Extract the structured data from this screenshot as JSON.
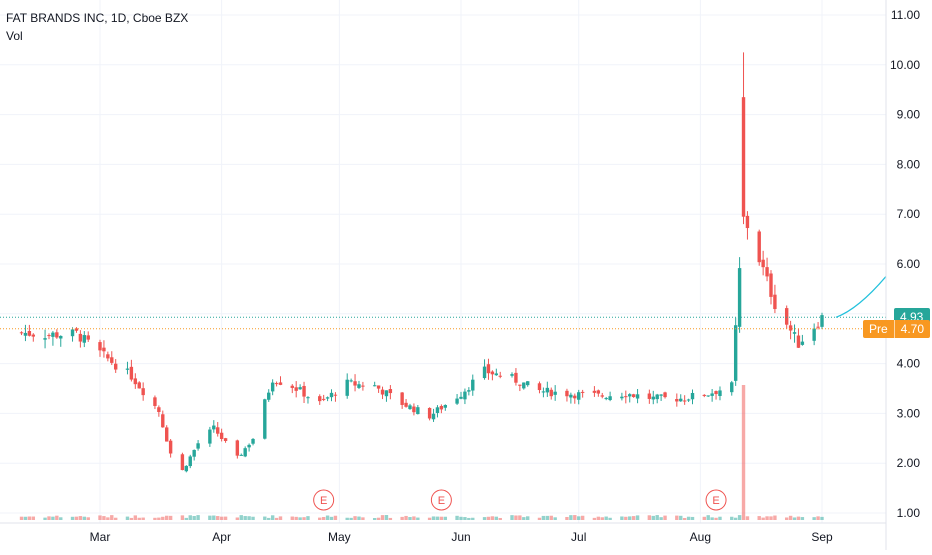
{
  "legend": {
    "title": "FAT BRANDS INC, 1D, Cboe BZX",
    "volume_label": "Vol"
  },
  "price_scale_labels": {
    "last": "4.93",
    "premarket_tag": "Pre",
    "premarket_value": "4.70"
  },
  "earnings_marker_label": "E",
  "colors": {
    "up": "#26a69a",
    "down": "#ef5350",
    "premarket": "#f89821",
    "projection": "#22c1dc",
    "grid": "#f0f3fa"
  },
  "chart_data": {
    "type": "candlestick",
    "title": "FAT BRANDS INC, 1D, Cboe BZX",
    "ylim": [
      0.8,
      11.2
    ],
    "yticks": [
      "1.00",
      "2.00",
      "3.00",
      "4.00",
      "5.00",
      "6.00",
      "7.00",
      "8.00",
      "9.00",
      "10.00",
      "11.00"
    ],
    "x_labels": [
      "Mar",
      "Apr",
      "May",
      "Jun",
      "Jul",
      "Aug",
      "Sep"
    ],
    "last_price": 4.93,
    "premarket_price": 4.7,
    "earnings_dates": [
      "2021-04-27",
      "2021-05-27",
      "2021-08-05"
    ],
    "candles": [
      {
        "date": "2021-02-09",
        "close": 4.62
      },
      {
        "date": "2021-02-16",
        "close": 4.58
      },
      {
        "date": "2021-02-23",
        "close": 4.6
      },
      {
        "date": "2021-03-02",
        "close": 4.15
      },
      {
        "date": "2021-03-09",
        "close": 3.75
      },
      {
        "date": "2021-03-16",
        "close": 3.05
      },
      {
        "date": "2021-03-19",
        "close": 2.2
      },
      {
        "date": "2021-03-22",
        "close": 1.85
      },
      {
        "date": "2021-03-26",
        "close": 2.4
      },
      {
        "date": "2021-03-30",
        "close": 2.7
      },
      {
        "date": "2021-04-05",
        "close": 2.1
      },
      {
        "date": "2021-04-09",
        "close": 2.5
      },
      {
        "date": "2021-04-14",
        "close": 3.7
      },
      {
        "date": "2021-04-19",
        "close": 3.55
      },
      {
        "date": "2021-04-26",
        "close": 3.2
      },
      {
        "date": "2021-05-03",
        "close": 3.6
      },
      {
        "date": "2021-05-10",
        "close": 3.55
      },
      {
        "date": "2021-05-17",
        "close": 3.2
      },
      {
        "date": "2021-05-24",
        "close": 2.95
      },
      {
        "date": "2021-06-01",
        "close": 3.4
      },
      {
        "date": "2021-06-07",
        "close": 3.85
      },
      {
        "date": "2021-06-14",
        "close": 3.7
      },
      {
        "date": "2021-06-21",
        "close": 3.45
      },
      {
        "date": "2021-06-28",
        "close": 3.4
      },
      {
        "date": "2021-07-06",
        "close": 3.35
      },
      {
        "date": "2021-07-13",
        "close": 3.4
      },
      {
        "date": "2021-07-20",
        "close": 3.3
      },
      {
        "date": "2021-07-27",
        "close": 3.3
      },
      {
        "date": "2021-08-03",
        "close": 3.4
      },
      {
        "date": "2021-08-09",
        "close": 3.55
      },
      {
        "date": "2021-08-12",
        "close": 7.0
      },
      {
        "date": "2021-08-16",
        "close": 6.1
      },
      {
        "date": "2021-08-20",
        "close": 5.2
      },
      {
        "date": "2021-08-26",
        "close": 4.4
      },
      {
        "date": "2021-09-01",
        "close": 4.93
      }
    ]
  }
}
